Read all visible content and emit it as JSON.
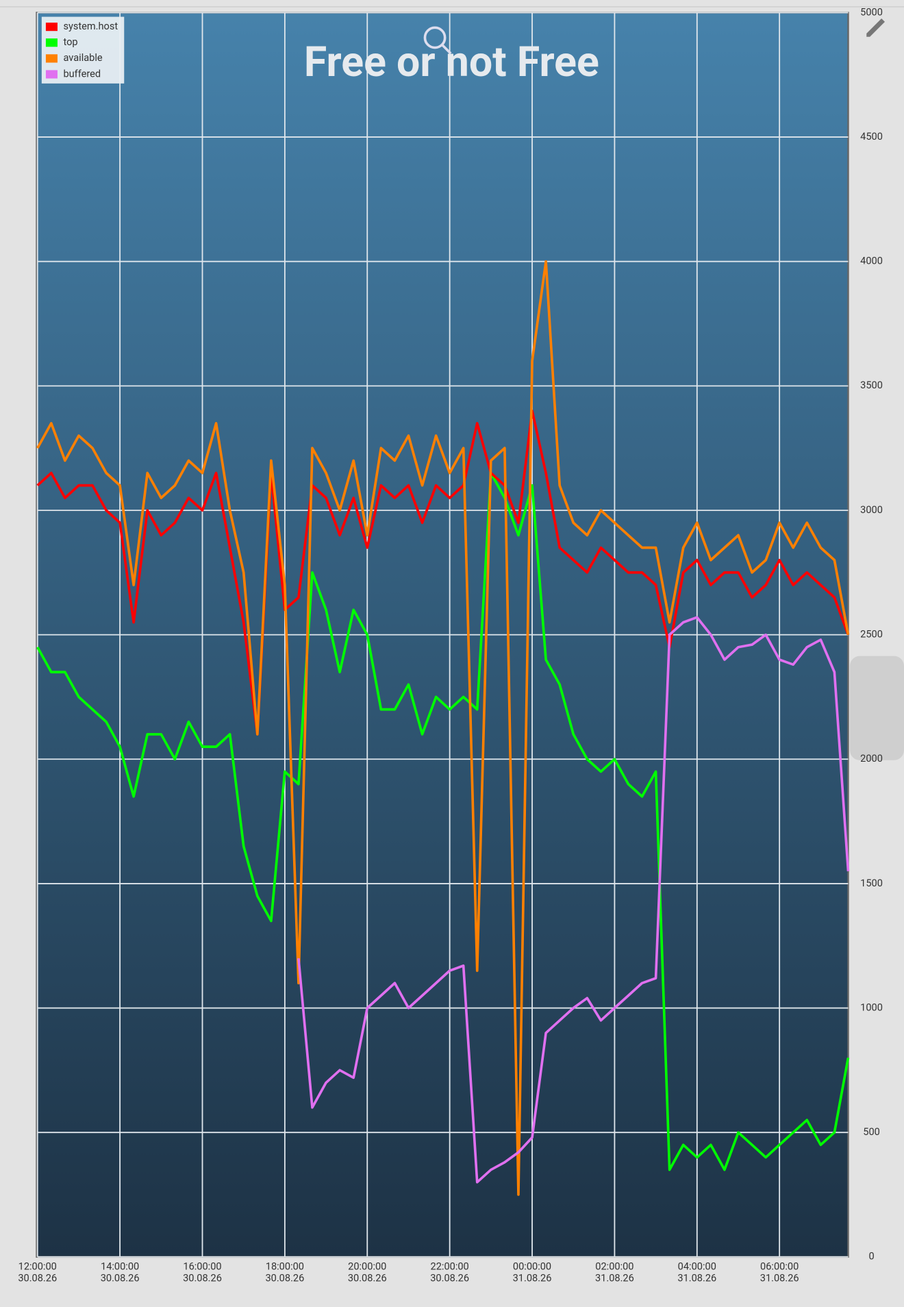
{
  "chart_data": {
    "type": "line",
    "title": "Free or not Free",
    "x": [
      "2026-08-30T12:00",
      "2026-08-30T12:20",
      "2026-08-30T12:40",
      "2026-08-30T13:00",
      "2026-08-30T13:20",
      "2026-08-30T13:40",
      "2026-08-30T14:00",
      "2026-08-30T14:20",
      "2026-08-30T14:40",
      "2026-08-30T15:00",
      "2026-08-30T15:20",
      "2026-08-30T15:40",
      "2026-08-30T16:00",
      "2026-08-30T16:20",
      "2026-08-30T16:40",
      "2026-08-30T17:00",
      "2026-08-30T17:20",
      "2026-08-30T17:40",
      "2026-08-30T18:00",
      "2026-08-30T18:20",
      "2026-08-30T18:40",
      "2026-08-30T19:00",
      "2026-08-30T19:20",
      "2026-08-30T19:40",
      "2026-08-30T20:00",
      "2026-08-30T20:20",
      "2026-08-30T20:40",
      "2026-08-30T21:00",
      "2026-08-30T21:20",
      "2026-08-30T21:40",
      "2026-08-30T22:00",
      "2026-08-30T22:20",
      "2026-08-30T22:40",
      "2026-08-30T23:00",
      "2026-08-30T23:20",
      "2026-08-30T23:40",
      "2026-08-31T00:00",
      "2026-08-31T00:20",
      "2026-08-31T00:40",
      "2026-08-31T01:00",
      "2026-08-31T01:20",
      "2026-08-31T01:40",
      "2026-08-31T02:00",
      "2026-08-31T02:20",
      "2026-08-31T02:40",
      "2026-08-31T03:00",
      "2026-08-31T03:20",
      "2026-08-31T03:40",
      "2026-08-31T04:00",
      "2026-08-31T04:20",
      "2026-08-31T04:40",
      "2026-08-31T05:00",
      "2026-08-31T05:20",
      "2026-08-31T05:40",
      "2026-08-31T06:00",
      "2026-08-31T06:20",
      "2026-08-31T06:40",
      "2026-08-31T07:00",
      "2026-08-31T07:20",
      "2026-08-31T07:40"
    ],
    "series": [
      {
        "name": "system.host",
        "color": "#ff0000",
        "values": [
          3100,
          3150,
          3050,
          3100,
          3100,
          3000,
          2950,
          2550,
          3000,
          2900,
          2950,
          3050,
          3000,
          3150,
          2850,
          2550,
          2100,
          3150,
          2600,
          2650,
          3100,
          3050,
          2900,
          3050,
          2850,
          3100,
          3050,
          3100,
          2950,
          3100,
          3050,
          3100,
          3350,
          3150,
          3100,
          2950,
          3400,
          3150,
          2850,
          2800,
          2750,
          2850,
          2800,
          2750,
          2750,
          2700,
          2450,
          2750,
          2800,
          2700,
          2750,
          2750,
          2650,
          2700,
          2800,
          2700,
          2750,
          2700,
          2650,
          2500
        ]
      },
      {
        "name": "top",
        "color": "#00ff00",
        "values": [
          2450,
          2350,
          2350,
          2250,
          2200,
          2150,
          2050,
          1850,
          2100,
          2100,
          2000,
          2150,
          2050,
          2050,
          2100,
          1650,
          1450,
          1350,
          1950,
          1900,
          2750,
          2600,
          2350,
          2600,
          2500,
          2200,
          2200,
          2300,
          2100,
          2250,
          2200,
          2250,
          2200,
          3150,
          3050,
          2900,
          3100,
          2400,
          2300,
          2100,
          2000,
          1950,
          2000,
          1900,
          1850,
          1950,
          350,
          450,
          400,
          450,
          350,
          500,
          450,
          400,
          450,
          500,
          550,
          450,
          500,
          800
        ]
      },
      {
        "name": "available",
        "color": "#ff8000",
        "values": [
          3250,
          3350,
          3200,
          3300,
          3250,
          3150,
          3100,
          2700,
          3150,
          3050,
          3100,
          3200,
          3150,
          3350,
          3000,
          2750,
          2100,
          3200,
          2700,
          1100,
          3250,
          3150,
          3000,
          3200,
          2900,
          3250,
          3200,
          3300,
          3100,
          3300,
          3150,
          3250,
          1150,
          3200,
          3250,
          250,
          3600,
          4000,
          3100,
          2950,
          2900,
          3000,
          2950,
          2900,
          2850,
          2850,
          2550,
          2850,
          2950,
          2800,
          2850,
          2900,
          2750,
          2800,
          2950,
          2850,
          2950,
          2850,
          2800,
          2500
        ]
      },
      {
        "name": "buffered",
        "color": "#e070f0",
        "values": [
          null,
          null,
          null,
          null,
          null,
          null,
          null,
          null,
          null,
          null,
          null,
          null,
          null,
          null,
          null,
          null,
          null,
          null,
          null,
          1200,
          600,
          700,
          750,
          720,
          1000,
          1050,
          1100,
          1000,
          1050,
          1100,
          1150,
          1170,
          300,
          350,
          380,
          420,
          480,
          900,
          950,
          1000,
          1040,
          950,
          1000,
          1050,
          1100,
          1120,
          2500,
          2550,
          2570,
          2500,
          2400,
          2450,
          2460,
          2500,
          2400,
          2380,
          2450,
          2480,
          2350,
          1550
        ]
      }
    ],
    "xlim": [
      "2026-08-30T12:00",
      "2026-08-31T07:40"
    ],
    "xticks": [
      {
        "value": "2026-08-30T12:00",
        "label": [
          "12:00:00",
          "30.08.26"
        ]
      },
      {
        "value": "2026-08-30T14:00",
        "label": [
          "14:00:00",
          "30.08.26"
        ]
      },
      {
        "value": "2026-08-30T16:00",
        "label": [
          "16:00:00",
          "30.08.26"
        ]
      },
      {
        "value": "2026-08-30T18:00",
        "label": [
          "18:00:00",
          "30.08.26"
        ]
      },
      {
        "value": "2026-08-30T20:00",
        "label": [
          "20:00:00",
          "30.08.26"
        ]
      },
      {
        "value": "2026-08-30T22:00",
        "label": [
          "22:00:00",
          "30.08.26"
        ]
      },
      {
        "value": "2026-08-31T00:00",
        "label": [
          "00:00:00",
          "31.08.26"
        ]
      },
      {
        "value": "2026-08-31T02:00",
        "label": [
          "02:00:00",
          "31.08.26"
        ]
      },
      {
        "value": "2026-08-31T04:00",
        "label": [
          "04:00:00",
          "31.08.26"
        ]
      },
      {
        "value": "2026-08-31T06:00",
        "label": [
          "06:00:00",
          "31.08.26"
        ]
      }
    ],
    "ylim": [
      0,
      5000
    ],
    "yticks": [
      0,
      500,
      1000,
      1500,
      2000,
      2500,
      3000,
      3500,
      4000,
      4500,
      5000
    ],
    "grid": true,
    "legend": "upper left"
  }
}
